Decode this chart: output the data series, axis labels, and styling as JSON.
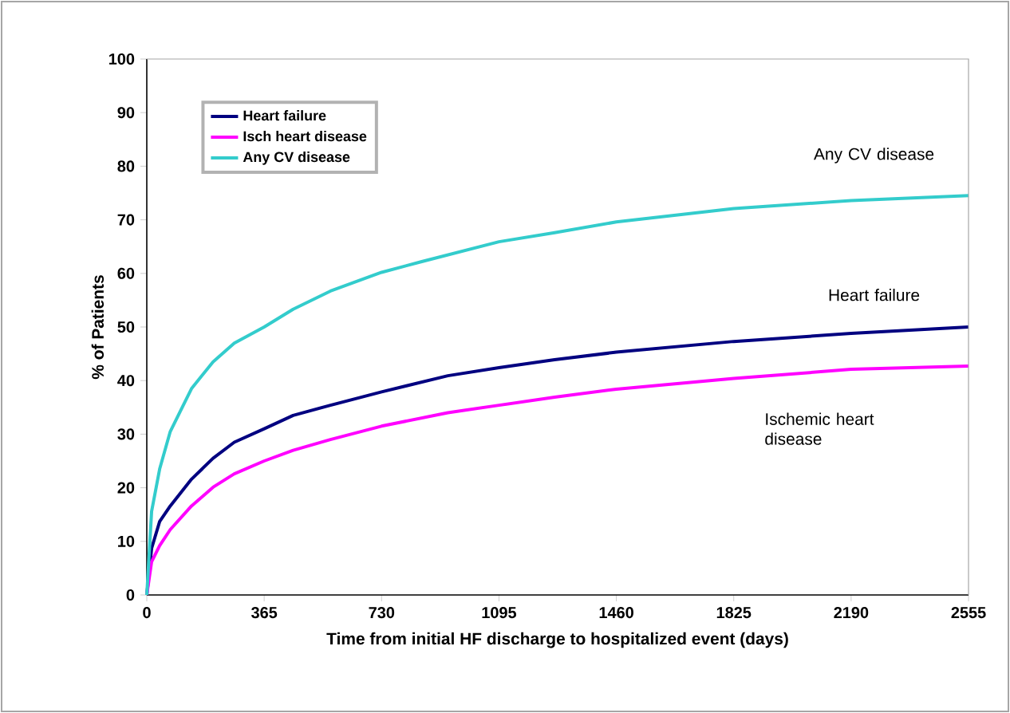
{
  "chart_data": {
    "type": "line",
    "xlabel": "Time from initial HF discharge to hospitalized event (days)",
    "ylabel": "% of Patients",
    "xlim": [
      0,
      2555
    ],
    "ylim": [
      0,
      100
    ],
    "xticks": [
      0,
      365,
      730,
      1095,
      1460,
      1825,
      2190,
      2555
    ],
    "yticks": [
      0,
      10,
      20,
      30,
      40,
      50,
      60,
      70,
      80,
      90,
      100
    ],
    "grid": false,
    "legend": "top left",
    "marker": "none",
    "line_style": "solid",
    "series": [
      {
        "name": "Heart failure",
        "color": "#000080",
        "x": [
          0,
          15,
          40,
          73,
          139,
          206,
          272,
          365,
          455,
          571,
          730,
          936,
          1095,
          1268,
          1460,
          1825,
          2190,
          2555
        ],
        "values": [
          0,
          8.7,
          13.7,
          16.6,
          21.6,
          25.5,
          28.5,
          31,
          33.5,
          35.4,
          37.9,
          40.9,
          42.4,
          43.9,
          45.3,
          47.3,
          48.8,
          50
        ]
      },
      {
        "name": "Isch heart disease",
        "color": "#ff00ff",
        "x": [
          0,
          15,
          40,
          73,
          139,
          206,
          272,
          365,
          455,
          571,
          730,
          936,
          1095,
          1268,
          1460,
          1825,
          2190,
          2555
        ],
        "values": [
          0,
          6.2,
          9.2,
          12.2,
          16.6,
          20.1,
          22.6,
          25,
          27,
          29,
          31.5,
          34,
          35.4,
          36.9,
          38.4,
          40.4,
          42.1,
          42.7
        ]
      },
      {
        "name": "Any CV disease",
        "color": "#33cccc",
        "x": [
          0,
          15,
          40,
          73,
          139,
          206,
          272,
          365,
          455,
          571,
          730,
          855,
          1095,
          1268,
          1460,
          1825,
          2190,
          2555
        ],
        "values": [
          0,
          15.6,
          23.5,
          30.5,
          38.5,
          43.5,
          47,
          50,
          53.3,
          56.7,
          60.2,
          62.2,
          65.9,
          67.6,
          69.6,
          72.1,
          73.6,
          74.5
        ]
      }
    ],
    "annotations": [
      "Any CV disease",
      "Heart failure",
      "Ischemic heart disease"
    ]
  }
}
